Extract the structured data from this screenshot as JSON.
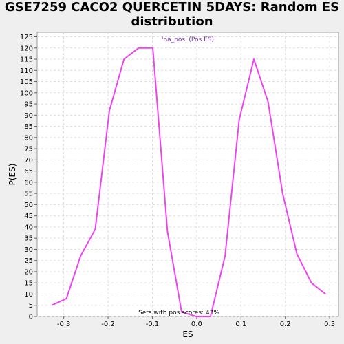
{
  "chart_data": {
    "type": "line",
    "title": "GSE7259 CACO2 QUERCETIN 5DAYS: Random ES distribution",
    "title_lines": [
      "GSE7259 CACO2 QUERCETIN 5DAYS: Random ES",
      "distribution"
    ],
    "xlabel": "ES",
    "ylabel": "P(ES)",
    "xlim": [
      -0.36,
      0.32
    ],
    "ylim": [
      0,
      127
    ],
    "x_ticks": [
      -0.3,
      -0.2,
      -0.1,
      0.0,
      0.1,
      0.2,
      0.3
    ],
    "x_tick_labels": [
      "-0.3",
      "-0.2",
      "-0.1",
      "0.0",
      "0.1",
      "0.2",
      "0.3"
    ],
    "y_ticks": [
      0,
      5,
      10,
      15,
      20,
      25,
      30,
      35,
      40,
      45,
      50,
      55,
      60,
      65,
      70,
      75,
      80,
      85,
      90,
      95,
      100,
      105,
      110,
      115,
      120,
      125
    ],
    "grid": true,
    "legend": "'na_pos' (Pos ES)",
    "legend_color": "#7030a0",
    "annotation": "Sets with pos scores: 43%",
    "series": [
      {
        "name": "na_pos",
        "color": "#ee44ee",
        "x": [
          -0.327,
          -0.294,
          -0.262,
          -0.229,
          -0.197,
          -0.164,
          -0.131,
          -0.099,
          -0.066,
          -0.034,
          -0.001,
          0.031,
          0.064,
          0.096,
          0.129,
          0.161,
          0.194,
          0.226,
          0.259,
          0.291
        ],
        "y": [
          5,
          8,
          27,
          39,
          92,
          115,
          120,
          120,
          38,
          2,
          0,
          0,
          27,
          88,
          115,
          96,
          55,
          28,
          15,
          10
        ]
      }
    ]
  }
}
